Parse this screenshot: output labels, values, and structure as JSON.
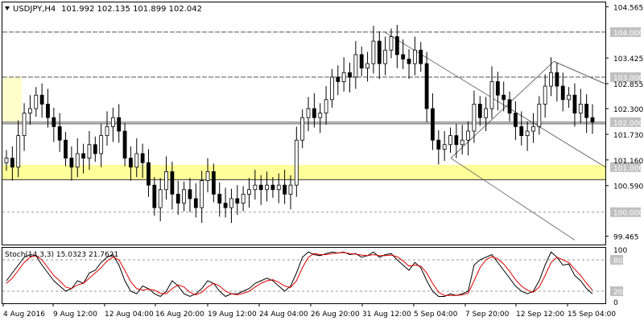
{
  "chart_title": {
    "symbol": "USDJPY,H4",
    "ohlc": "101.992 102.135 101.899 102.042"
  },
  "chart_data": [
    {
      "type": "candlestick",
      "title": "USDJPY,H4",
      "ylim": [
        99.28,
        104.66
      ],
      "ytick_labels": [
        "104.565",
        "103.425",
        "102.855",
        "102.300",
        "101.730",
        "101.160",
        "100.590",
        "99.465"
      ],
      "price_tag_labels": [
        "104.000",
        "103.000",
        "102.000",
        "101.000",
        "100.000"
      ],
      "xtick_labels": [
        "4 Aug 2016",
        "9 Aug 12:00",
        "12 Aug 04:00",
        "16 Aug 20:00",
        "19 Aug 12:00",
        "24 Aug 04:00",
        "26 Aug 20:00",
        "31 Aug 12:00",
        "5 Sep 04:00",
        "7 Sep 20:00",
        "12 Sep 12:00",
        "15 Sep 04:00"
      ],
      "horizontal_levels": [
        104.0,
        103.0,
        102.0,
        100.0
      ],
      "zones": [
        {
          "from": 100.72,
          "to": 101.05,
          "color": "#ffff99"
        },
        {
          "from": 102.0,
          "to": 103.0,
          "color": "#ffffcc"
        }
      ],
      "closes": [
        101.2,
        101.0,
        101.7,
        102.2,
        102.3,
        102.6,
        102.4,
        102.1,
        101.9,
        101.6,
        101.2,
        101.0,
        101.3,
        101.2,
        101.5,
        101.3,
        101.7,
        101.9,
        102.1,
        101.8,
        101.2,
        101.0,
        101.3,
        101.1,
        100.6,
        100.1,
        100.5,
        100.9,
        100.4,
        100.2,
        100.5,
        100.3,
        100.1,
        100.7,
        100.9,
        100.4,
        100.2,
        100.1,
        100.3,
        100.2,
        100.4,
        100.5,
        100.6,
        100.5,
        100.6,
        100.5,
        100.6,
        100.4,
        100.6,
        101.6,
        102.1,
        102.3,
        102.1,
        102.2,
        102.5,
        103.0,
        102.9,
        103.1,
        103.0,
        103.5,
        103.2,
        103.3,
        103.8,
        103.3,
        103.6,
        103.9,
        103.5,
        103.4,
        103.3,
        103.6,
        103.3,
        102.3,
        101.6,
        101.4,
        101.5,
        101.7,
        101.5,
        101.6,
        101.8,
        102.4,
        102.1,
        102.3,
        102.9,
        102.6,
        102.5,
        102.2,
        101.9,
        101.7,
        101.8,
        101.9,
        102.4,
        102.8,
        103.1,
        102.8,
        102.5,
        102.6,
        102.2,
        102.4,
        102.1,
        102.0
      ],
      "stoch_values": {
        "k": 15.0323,
        "d": 21.7621
      },
      "stoch_label": "Stoch(14,3,3) 15.0323 21.7621",
      "stoch_ylim": [
        0,
        100
      ],
      "stoch_tick_labels": [
        "100",
        "80",
        "20",
        "0"
      ],
      "stoch_k": [
        40,
        55,
        70,
        85,
        90,
        88,
        70,
        55,
        40,
        30,
        20,
        25,
        40,
        35,
        55,
        60,
        75,
        85,
        90,
        70,
        40,
        20,
        15,
        30,
        25,
        15,
        10,
        20,
        40,
        30,
        15,
        10,
        15,
        25,
        40,
        35,
        20,
        10,
        15,
        15,
        20,
        25,
        35,
        40,
        45,
        40,
        30,
        20,
        30,
        55,
        85,
        95,
        90,
        88,
        92,
        95,
        93,
        95,
        90,
        92,
        85,
        88,
        95,
        85,
        90,
        92,
        80,
        70,
        60,
        75,
        65,
        40,
        20,
        10,
        10,
        15,
        12,
        15,
        20,
        70,
        80,
        85,
        90,
        75,
        60,
        45,
        30,
        20,
        15,
        20,
        40,
        70,
        95,
        85,
        70,
        72,
        50,
        40,
        25,
        15
      ],
      "stoch_d": [
        35,
        45,
        60,
        75,
        85,
        88,
        80,
        65,
        50,
        40,
        28,
        25,
        32,
        35,
        45,
        55,
        65,
        78,
        85,
        80,
        60,
        38,
        25,
        22,
        24,
        22,
        16,
        15,
        25,
        32,
        28,
        18,
        13,
        18,
        28,
        35,
        30,
        20,
        15,
        13,
        16,
        20,
        28,
        35,
        40,
        42,
        37,
        30,
        27,
        40,
        65,
        85,
        92,
        90,
        90,
        92,
        93,
        94,
        92,
        91,
        89,
        88,
        90,
        88,
        88,
        89,
        86,
        78,
        68,
        70,
        68,
        55,
        35,
        18,
        12,
        12,
        12,
        13,
        16,
        40,
        65,
        80,
        86,
        82,
        72,
        58,
        42,
        30,
        22,
        18,
        28,
        50,
        75,
        85,
        80,
        75,
        62,
        50,
        35,
        22
      ]
    }
  ]
}
